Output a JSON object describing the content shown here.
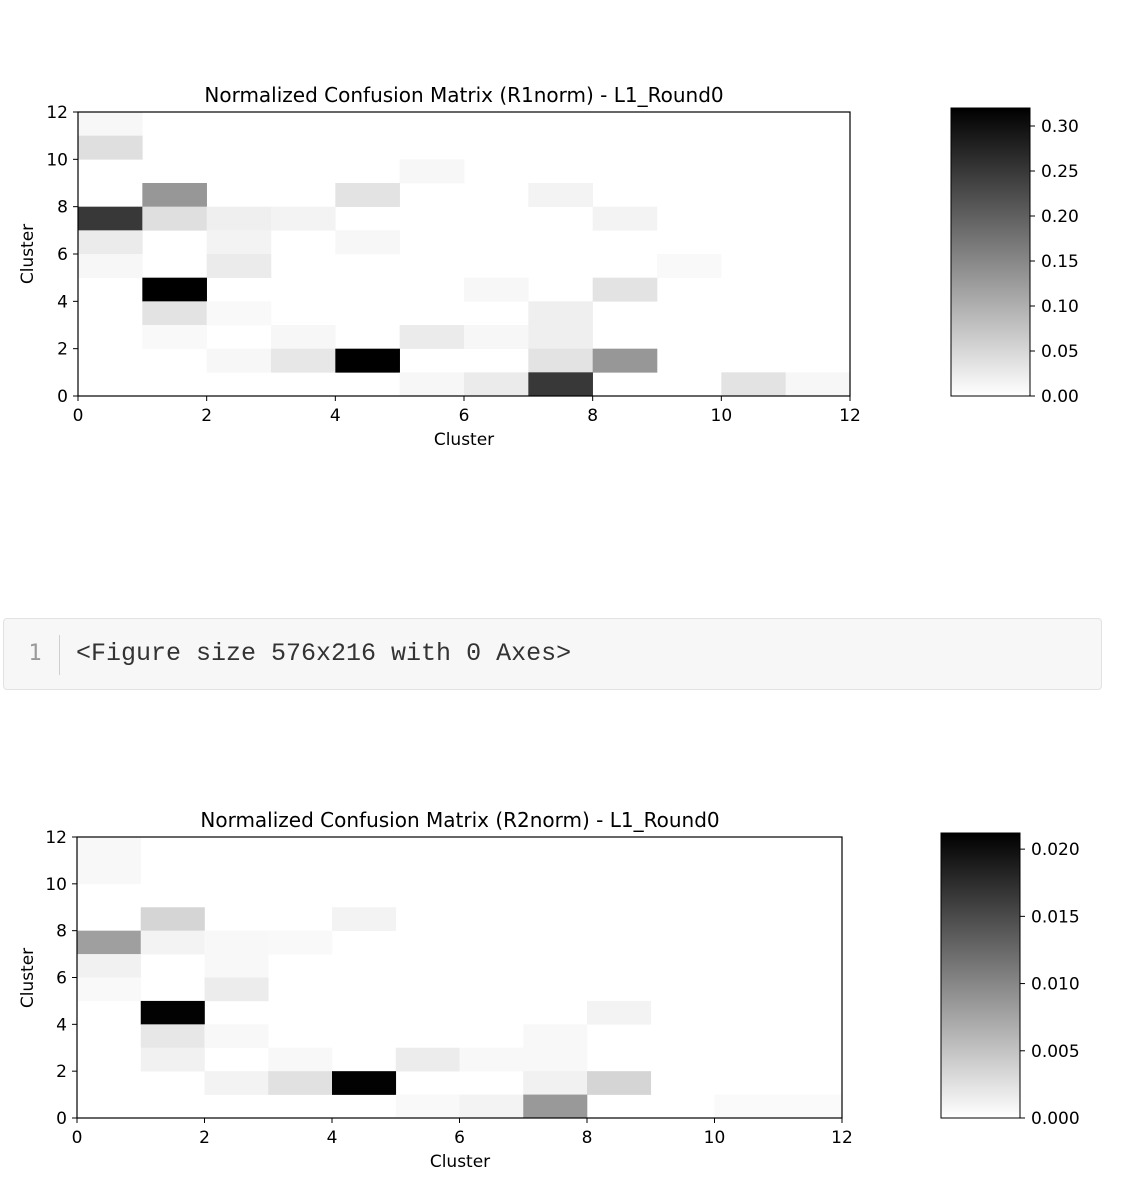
{
  "chart_data": [
    {
      "type": "heatmap",
      "title": "Normalized Confusion Matrix (R1norm) - L1_Round0",
      "xlabel": "Cluster",
      "ylabel": "Cluster",
      "xlim": [
        0,
        12
      ],
      "ylim": [
        0,
        12
      ],
      "xticks": [
        0,
        2,
        4,
        6,
        8,
        10,
        12
      ],
      "yticks": [
        0,
        2,
        4,
        6,
        8,
        10,
        12
      ],
      "colormap": "Greys",
      "colorbar": {
        "min": 0,
        "max": 0.32,
        "ticks": [
          "0.00",
          "0.05",
          "0.10",
          "0.15",
          "0.20",
          "0.25",
          "0.30"
        ]
      },
      "cells": [
        {
          "x": 0,
          "y": 11,
          "v": 0.01
        },
        {
          "x": 0,
          "y": 10,
          "v": 0.04
        },
        {
          "x": 5,
          "y": 9,
          "v": 0.01
        },
        {
          "x": 1,
          "y": 8,
          "v": 0.13
        },
        {
          "x": 4,
          "y": 8,
          "v": 0.035
        },
        {
          "x": 7,
          "y": 8,
          "v": 0.015
        },
        {
          "x": 0,
          "y": 7,
          "v": 0.25
        },
        {
          "x": 1,
          "y": 7,
          "v": 0.04
        },
        {
          "x": 2,
          "y": 7,
          "v": 0.02
        },
        {
          "x": 3,
          "y": 7,
          "v": 0.015
        },
        {
          "x": 8,
          "y": 7,
          "v": 0.015
        },
        {
          "x": 0,
          "y": 6,
          "v": 0.025
        },
        {
          "x": 2,
          "y": 6,
          "v": 0.015
        },
        {
          "x": 4,
          "y": 6,
          "v": 0.01
        },
        {
          "x": 0,
          "y": 5,
          "v": 0.01
        },
        {
          "x": 2,
          "y": 5,
          "v": 0.025
        },
        {
          "x": 9,
          "y": 5,
          "v": 0.008
        },
        {
          "x": 1,
          "y": 4,
          "v": 0.32
        },
        {
          "x": 6,
          "y": 4,
          "v": 0.01
        },
        {
          "x": 8,
          "y": 4,
          "v": 0.035
        },
        {
          "x": 1,
          "y": 3,
          "v": 0.035
        },
        {
          "x": 2,
          "y": 3,
          "v": 0.008
        },
        {
          "x": 7,
          "y": 3,
          "v": 0.02
        },
        {
          "x": 1,
          "y": 2,
          "v": 0.008
        },
        {
          "x": 3,
          "y": 2,
          "v": 0.01
        },
        {
          "x": 5,
          "y": 2,
          "v": 0.025
        },
        {
          "x": 6,
          "y": 2,
          "v": 0.01
        },
        {
          "x": 7,
          "y": 2,
          "v": 0.02
        },
        {
          "x": 2,
          "y": 1,
          "v": 0.01
        },
        {
          "x": 3,
          "y": 1,
          "v": 0.03
        },
        {
          "x": 4,
          "y": 1,
          "v": 0.32
        },
        {
          "x": 7,
          "y": 1,
          "v": 0.035
        },
        {
          "x": 8,
          "y": 1,
          "v": 0.13
        },
        {
          "x": 5,
          "y": 0,
          "v": 0.01
        },
        {
          "x": 6,
          "y": 0,
          "v": 0.025
        },
        {
          "x": 7,
          "y": 0,
          "v": 0.25
        },
        {
          "x": 10,
          "y": 0,
          "v": 0.035
        },
        {
          "x": 11,
          "y": 0,
          "v": 0.01
        }
      ]
    },
    {
      "type": "heatmap",
      "title": "Normalized Confusion Matrix (R2norm) - L1_Round0",
      "xlabel": "Cluster",
      "ylabel": "Cluster",
      "xlim": [
        0,
        12
      ],
      "ylim": [
        0,
        12
      ],
      "xticks": [
        0,
        2,
        4,
        6,
        8,
        10,
        12
      ],
      "yticks": [
        0,
        2,
        4,
        6,
        8,
        10,
        12
      ],
      "colormap": "Greys",
      "colorbar": {
        "min": 0,
        "max": 0.0212,
        "ticks": [
          "0.000",
          "0.005",
          "0.010",
          "0.015",
          "0.020"
        ]
      },
      "cells": [
        {
          "x": 0,
          "y": 11,
          "v": 0.0006
        },
        {
          "x": 0,
          "y": 10,
          "v": 0.0006
        },
        {
          "x": 1,
          "y": 8,
          "v": 0.0035
        },
        {
          "x": 4,
          "y": 8,
          "v": 0.001
        },
        {
          "x": 0,
          "y": 7,
          "v": 0.008
        },
        {
          "x": 1,
          "y": 7,
          "v": 0.001
        },
        {
          "x": 2,
          "y": 7,
          "v": 0.0006
        },
        {
          "x": 3,
          "y": 7,
          "v": 0.0005
        },
        {
          "x": 0,
          "y": 6,
          "v": 0.0012
        },
        {
          "x": 2,
          "y": 6,
          "v": 0.0006
        },
        {
          "x": 0,
          "y": 5,
          "v": 0.0005
        },
        {
          "x": 2,
          "y": 5,
          "v": 0.0016
        },
        {
          "x": 1,
          "y": 4,
          "v": 0.021
        },
        {
          "x": 8,
          "y": 4,
          "v": 0.001
        },
        {
          "x": 1,
          "y": 3,
          "v": 0.002
        },
        {
          "x": 2,
          "y": 3,
          "v": 0.0006
        },
        {
          "x": 7,
          "y": 3,
          "v": 0.0006
        },
        {
          "x": 1,
          "y": 2,
          "v": 0.0012
        },
        {
          "x": 3,
          "y": 2,
          "v": 0.0006
        },
        {
          "x": 5,
          "y": 2,
          "v": 0.0016
        },
        {
          "x": 6,
          "y": 2,
          "v": 0.0006
        },
        {
          "x": 7,
          "y": 2,
          "v": 0.0006
        },
        {
          "x": 2,
          "y": 1,
          "v": 0.001
        },
        {
          "x": 3,
          "y": 1,
          "v": 0.0025
        },
        {
          "x": 4,
          "y": 1,
          "v": 0.021
        },
        {
          "x": 7,
          "y": 1,
          "v": 0.0012
        },
        {
          "x": 8,
          "y": 1,
          "v": 0.0035
        },
        {
          "x": 5,
          "y": 0,
          "v": 0.0005
        },
        {
          "x": 6,
          "y": 0,
          "v": 0.001
        },
        {
          "x": 7,
          "y": 0,
          "v": 0.0085
        },
        {
          "x": 10,
          "y": 0,
          "v": 0.0004
        },
        {
          "x": 11,
          "y": 0,
          "v": 0.0004
        }
      ]
    }
  ],
  "code_cell": {
    "line_number": "1",
    "text": "<Figure size 576x216 with 0 Axes>"
  }
}
